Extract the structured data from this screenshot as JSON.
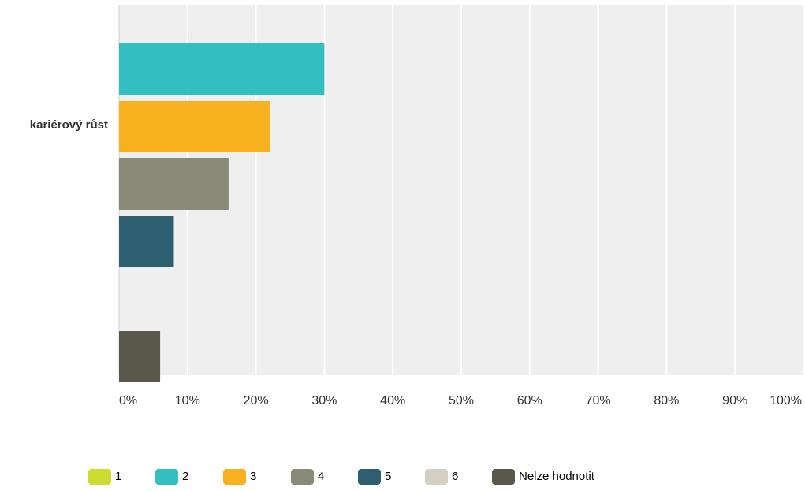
{
  "chart_data": {
    "type": "bar",
    "orientation": "horizontal",
    "categories": [
      "kariérový růst"
    ],
    "series": [
      {
        "name": "1",
        "color": "#cedb30",
        "values": [
          0
        ]
      },
      {
        "name": "2",
        "color": "#33bfbf",
        "values": [
          30
        ]
      },
      {
        "name": "3",
        "color": "#f7b01e",
        "values": [
          22
        ]
      },
      {
        "name": "4",
        "color": "#8a8a78",
        "values": [
          16
        ]
      },
      {
        "name": "5",
        "color": "#2c5f70",
        "values": [
          8
        ]
      },
      {
        "name": "6",
        "color": "#d3d0c2",
        "values": [
          0
        ]
      },
      {
        "name": "Nelze hodnotit",
        "color": "#5a584a",
        "values": [
          6
        ]
      }
    ],
    "xlim": [
      0,
      100
    ],
    "x_ticks": [
      "0%",
      "10%",
      "20%",
      "30%",
      "40%",
      "50%",
      "60%",
      "70%",
      "80%",
      "90%",
      "100%"
    ],
    "grid": true,
    "legend_position": "bottom",
    "plot_background": "#efefef",
    "grid_color": "#ffffff"
  }
}
